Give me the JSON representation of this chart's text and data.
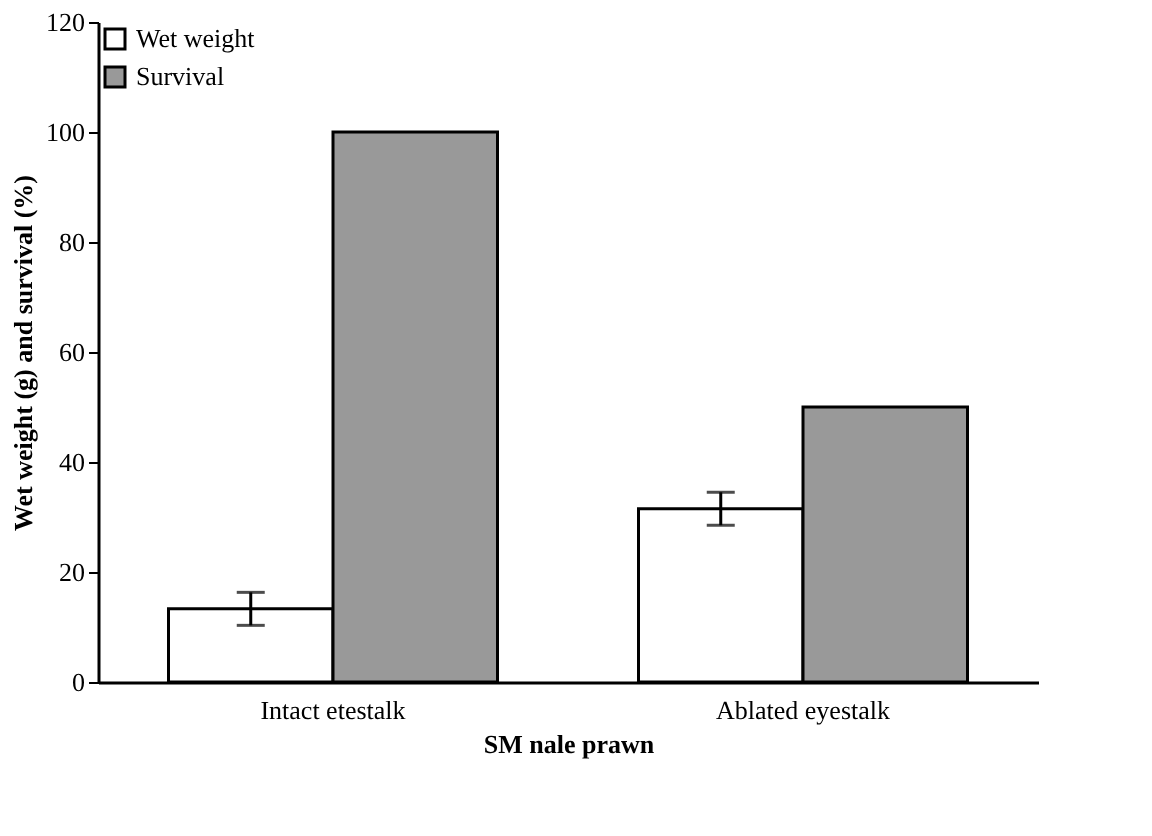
{
  "chart_data": {
    "type": "bar",
    "xlabel": "SM nale prawn",
    "ylabel": "Wet weight (g) and survival (%)",
    "categories": [
      "Intact etestalk",
      "Ablated eyestalk"
    ],
    "series": [
      {
        "name": "Wet weight",
        "color": "#ffffff",
        "values": [
          13.3,
          31.5
        ],
        "errors": [
          3,
          3
        ]
      },
      {
        "name": "Survival",
        "color": "#999999",
        "values": [
          100,
          50
        ]
      }
    ],
    "ylim": [
      0,
      120
    ],
    "yticks": [
      0,
      20,
      40,
      60,
      80,
      100,
      120
    ],
    "grid": false,
    "legend": "top left"
  }
}
